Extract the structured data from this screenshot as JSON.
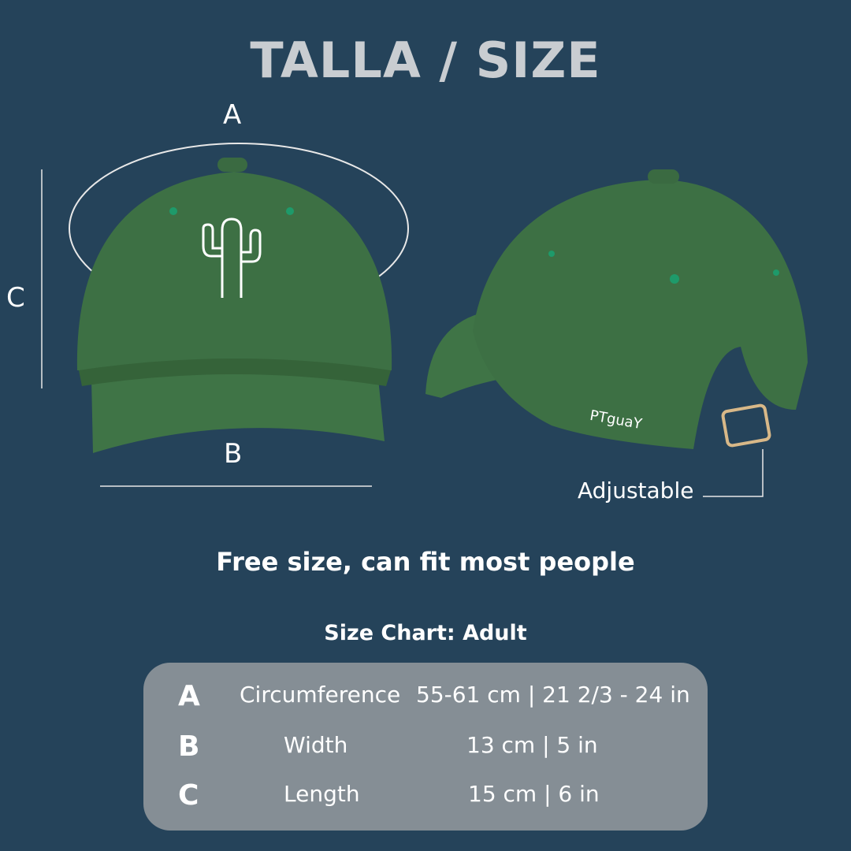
{
  "title": "TALLA / SIZE",
  "labels": {
    "a": "A",
    "b": "B",
    "c": "C",
    "adjustable": "Adjustable"
  },
  "brand_embroidery": "PTguaY",
  "subtitle": "Free size, can fit most people",
  "size_chart": {
    "title": "Size Chart: Adult",
    "rows": [
      {
        "letter": "A",
        "name": "Circumference",
        "value": "55-61 cm | 21 2/3 - 24 in"
      },
      {
        "letter": "B",
        "name": "Width",
        "value": "13 cm | 5 in"
      },
      {
        "letter": "C",
        "name": "Length",
        "value": "15 cm | 6 in"
      }
    ]
  },
  "colors": {
    "background": "#25435a",
    "cap": "#3f7446",
    "table": "#858e95",
    "title": "#c9cdd1"
  }
}
